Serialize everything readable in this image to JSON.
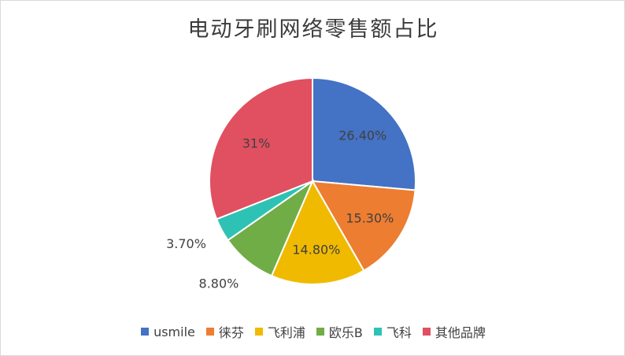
{
  "chart_data": {
    "type": "pie",
    "title": "电动牙刷网络零售额占比",
    "categories": [
      "usmile",
      "徕芬",
      "飞利浦",
      "欧乐B",
      "飞科",
      "其他品牌"
    ],
    "values": [
      26.4,
      15.3,
      14.8,
      8.8,
      3.7,
      31
    ],
    "value_labels": [
      "26.40%",
      "15.30%",
      "14.80%",
      "8.80%",
      "3.70%",
      "31%"
    ],
    "colors": [
      "#4472C4",
      "#ED7D31",
      "#F0BA00",
      "#70AD47",
      "#2EC2B4",
      "#E05060"
    ],
    "legend_position": "bottom"
  }
}
